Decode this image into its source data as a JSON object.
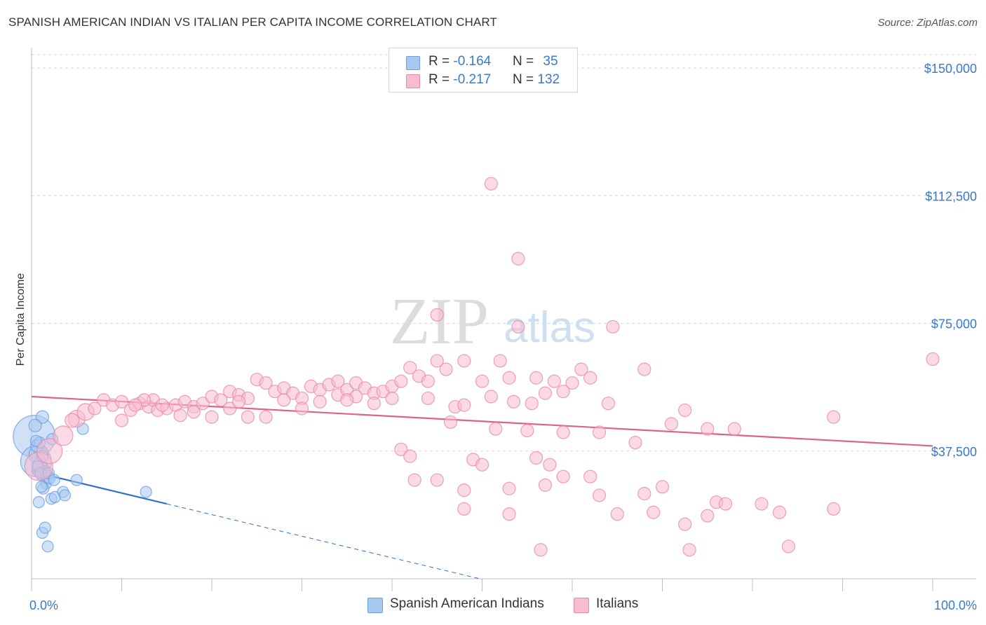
{
  "header": {
    "title": "SPANISH AMERICAN INDIAN VS ITALIAN PER CAPITA INCOME CORRELATION CHART",
    "source": "Source: ZipAtlas.com"
  },
  "watermark": {
    "zip": "ZIP",
    "atlas": "atlas"
  },
  "legend_top": {
    "rows": [
      {
        "r_label": "R = ",
        "r_value": "-0.164",
        "n_label": "N = ",
        "n_value": "35",
        "color": "#a9c8f0",
        "border": "#6a9fe0"
      },
      {
        "r_label": "R = ",
        "r_value": "-0.217",
        "n_label": "N = ",
        "n_value": "132",
        "color": "#f7bcd0",
        "border": "#e889a8"
      }
    ]
  },
  "legend_bottom": [
    {
      "label": "Spanish American Indians",
      "color": "#a9c8f0",
      "border": "#6a9fe0"
    },
    {
      "label": "Italians",
      "color": "#f7bcd0",
      "border": "#e889a8"
    }
  ],
  "chart_data": {
    "type": "scatter",
    "ylabel": "Per Capita Income",
    "xlabel": "",
    "xlim": [
      0,
      100
    ],
    "ylim": [
      0,
      155000
    ],
    "x_tick_labels": [
      {
        "value": 0,
        "label": "0.0%"
      },
      {
        "value": 100,
        "label": "100.0%"
      }
    ],
    "y_ticks": [
      {
        "value": 37500,
        "label": "$37,500"
      },
      {
        "value": 75000,
        "label": "$75,000"
      },
      {
        "value": 112500,
        "label": "$112,500"
      },
      {
        "value": 150000,
        "label": "$150,000"
      }
    ],
    "grid": "horizontal dashed",
    "series": [
      {
        "name": "Spanish American Indians",
        "color": "#6a9fe0",
        "fill": "#a9c8f0",
        "trend": {
          "x0": 0,
          "y0": 31500,
          "x1": 15,
          "y1": 22000,
          "dash_to_x": 50
        },
        "points": [
          [
            0.3,
            41800,
            30
          ],
          [
            0.5,
            34500,
            22
          ],
          [
            0.8,
            36500,
            14
          ],
          [
            1.0,
            32000,
            12
          ],
          [
            1.2,
            47500,
            9
          ],
          [
            0.4,
            45000,
            9
          ],
          [
            0.6,
            39000,
            9
          ],
          [
            0.9,
            33500,
            10
          ],
          [
            1.1,
            30500,
            8
          ],
          [
            1.4,
            31000,
            9
          ],
          [
            1.6,
            28000,
            8
          ],
          [
            1.3,
            26500,
            8
          ],
          [
            1.5,
            31500,
            8
          ],
          [
            1.8,
            30000,
            9
          ],
          [
            2.0,
            29500,
            8
          ],
          [
            2.2,
            23500,
            8
          ],
          [
            2.6,
            24000,
            8
          ],
          [
            3.5,
            25500,
            8
          ],
          [
            3.7,
            24500,
            8
          ],
          [
            5.0,
            29000,
            8
          ],
          [
            5.7,
            44000,
            8
          ],
          [
            12.7,
            25500,
            8
          ],
          [
            0.8,
            22500,
            8
          ],
          [
            1.2,
            13500,
            8
          ],
          [
            1.5,
            15000,
            8
          ],
          [
            1.8,
            9500,
            8
          ],
          [
            0.9,
            40000,
            8
          ],
          [
            1.2,
            36000,
            8
          ],
          [
            0.7,
            33000,
            8
          ],
          [
            1.0,
            31000,
            8
          ],
          [
            2.3,
            41000,
            8
          ],
          [
            1.9,
            31000,
            8
          ],
          [
            1.1,
            27000,
            8
          ],
          [
            2.5,
            29000,
            8
          ],
          [
            0.5,
            40500,
            8
          ]
        ]
      },
      {
        "name": "Italians",
        "color": "#e889a8",
        "fill": "#f7bcd0",
        "trend": {
          "x0": 0,
          "y0": 53500,
          "x1": 100,
          "y1": 39000
        },
        "points": [
          [
            0.8,
            33000,
            20
          ],
          [
            2.0,
            37500,
            18
          ],
          [
            3.5,
            42000,
            14
          ],
          [
            5.0,
            47000,
            12
          ],
          [
            6.0,
            49000,
            12
          ],
          [
            4.5,
            46500,
            10
          ],
          [
            7.0,
            50000,
            9
          ],
          [
            8.0,
            52500,
            9
          ],
          [
            9.0,
            51000,
            9
          ],
          [
            10.0,
            52000,
            9
          ],
          [
            11.0,
            49500,
            9
          ],
          [
            12.0,
            51500,
            9
          ],
          [
            13.0,
            50500,
            9
          ],
          [
            13.5,
            52500,
            9
          ],
          [
            14.0,
            49500,
            9
          ],
          [
            15.0,
            50000,
            9
          ],
          [
            16.0,
            51000,
            9
          ],
          [
            17.0,
            52000,
            9
          ],
          [
            18.0,
            50500,
            9
          ],
          [
            19.0,
            51500,
            9
          ],
          [
            20.0,
            53500,
            9
          ],
          [
            21.0,
            52500,
            9
          ],
          [
            22.0,
            55000,
            9
          ],
          [
            23.0,
            54000,
            9
          ],
          [
            24.0,
            53000,
            9
          ],
          [
            25.0,
            58500,
            9
          ],
          [
            26.0,
            57500,
            9
          ],
          [
            27.0,
            55000,
            9
          ],
          [
            28.0,
            56000,
            9
          ],
          [
            29.0,
            54500,
            9
          ],
          [
            30.0,
            53000,
            9
          ],
          [
            31.0,
            56500,
            9
          ],
          [
            32.0,
            55500,
            9
          ],
          [
            33.0,
            57000,
            9
          ],
          [
            34.0,
            54000,
            9
          ],
          [
            35.0,
            55500,
            9
          ],
          [
            36.0,
            57500,
            9
          ],
          [
            37.0,
            56000,
            9
          ],
          [
            38.0,
            54500,
            9
          ],
          [
            39.0,
            55000,
            9
          ],
          [
            40.0,
            56500,
            9
          ],
          [
            41.0,
            58000,
            9
          ],
          [
            42.0,
            62000,
            9
          ],
          [
            43.0,
            59500,
            9
          ],
          [
            44.0,
            58000,
            9
          ],
          [
            45.0,
            64000,
            9
          ],
          [
            46.0,
            61500,
            9
          ],
          [
            48.0,
            64000,
            9
          ],
          [
            50.0,
            58000,
            9
          ],
          [
            52.0,
            64000,
            9
          ],
          [
            53.0,
            59000,
            9
          ],
          [
            56.0,
            59000,
            9
          ],
          [
            58.0,
            58000,
            9
          ],
          [
            62.0,
            59000,
            9
          ],
          [
            68.0,
            61500,
            9
          ],
          [
            34.0,
            58000,
            9
          ],
          [
            36.0,
            53500,
            9
          ],
          [
            38.0,
            51500,
            9
          ],
          [
            40.0,
            53000,
            9
          ],
          [
            44.0,
            53000,
            9
          ],
          [
            47.0,
            50500,
            9
          ],
          [
            48.0,
            51000,
            9
          ],
          [
            51.0,
            53500,
            9
          ],
          [
            53.5,
            52000,
            9
          ],
          [
            55.5,
            51500,
            9
          ],
          [
            22.0,
            50000,
            9
          ],
          [
            24.0,
            47500,
            9
          ],
          [
            26.0,
            47500,
            9
          ],
          [
            32.0,
            52000,
            9
          ],
          [
            35.0,
            52500,
            9
          ],
          [
            16.5,
            48000,
            9
          ],
          [
            10.0,
            46500,
            9
          ],
          [
            18.0,
            49000,
            9
          ],
          [
            20.0,
            47500,
            9
          ],
          [
            23.0,
            52000,
            9
          ],
          [
            28.0,
            52500,
            9
          ],
          [
            30.0,
            50000,
            9
          ],
          [
            12.5,
            52500,
            9
          ],
          [
            14.5,
            51000,
            9
          ],
          [
            11.5,
            51000,
            9
          ],
          [
            51.5,
            44000,
            9
          ],
          [
            55.0,
            43500,
            9
          ],
          [
            59.0,
            43000,
            9
          ],
          [
            63.0,
            43000,
            9
          ],
          [
            67.0,
            40000,
            9
          ],
          [
            71.0,
            45500,
            9
          ],
          [
            75.0,
            44000,
            9
          ],
          [
            78.0,
            44000,
            9
          ],
          [
            89.0,
            47500,
            9
          ],
          [
            72.5,
            49500,
            9
          ],
          [
            57.0,
            54500,
            9
          ],
          [
            60.0,
            57500,
            9
          ],
          [
            64.0,
            51500,
            9
          ],
          [
            59.0,
            55000,
            9
          ],
          [
            46.5,
            46000,
            9
          ],
          [
            41.0,
            38000,
            9
          ],
          [
            42.0,
            36000,
            9
          ],
          [
            49.0,
            35000,
            9
          ],
          [
            50.0,
            33500,
            9
          ],
          [
            56.0,
            35500,
            9
          ],
          [
            57.5,
            33500,
            9
          ],
          [
            42.5,
            29000,
            9
          ],
          [
            45.0,
            29000,
            9
          ],
          [
            48.0,
            26000,
            9
          ],
          [
            53.0,
            26500,
            9
          ],
          [
            57.0,
            27500,
            9
          ],
          [
            59.0,
            30000,
            9
          ],
          [
            62.0,
            30000,
            9
          ],
          [
            65.0,
            19000,
            9
          ],
          [
            69.0,
            19500,
            9
          ],
          [
            75.0,
            18500,
            9
          ],
          [
            83.0,
            19500,
            9
          ],
          [
            89.0,
            20500,
            9
          ],
          [
            72.5,
            16000,
            9
          ],
          [
            53.0,
            19000,
            9
          ],
          [
            48.0,
            20500,
            9
          ],
          [
            81.0,
            22000,
            9
          ],
          [
            76.0,
            22500,
            9
          ],
          [
            68.0,
            25000,
            9
          ],
          [
            63.0,
            24500,
            9
          ],
          [
            77.0,
            22000,
            9
          ],
          [
            70.0,
            27000,
            9
          ],
          [
            56.5,
            8500,
            9
          ],
          [
            84.0,
            9500,
            9
          ],
          [
            73.0,
            8500,
            9
          ],
          [
            51.0,
            116000,
            9
          ],
          [
            54.0,
            94000,
            9
          ],
          [
            54.0,
            74000,
            9
          ],
          [
            64.5,
            74000,
            9
          ],
          [
            45.0,
            77500,
            9
          ],
          [
            100.0,
            64500,
            9
          ],
          [
            61.0,
            61500,
            9
          ]
        ]
      }
    ]
  }
}
